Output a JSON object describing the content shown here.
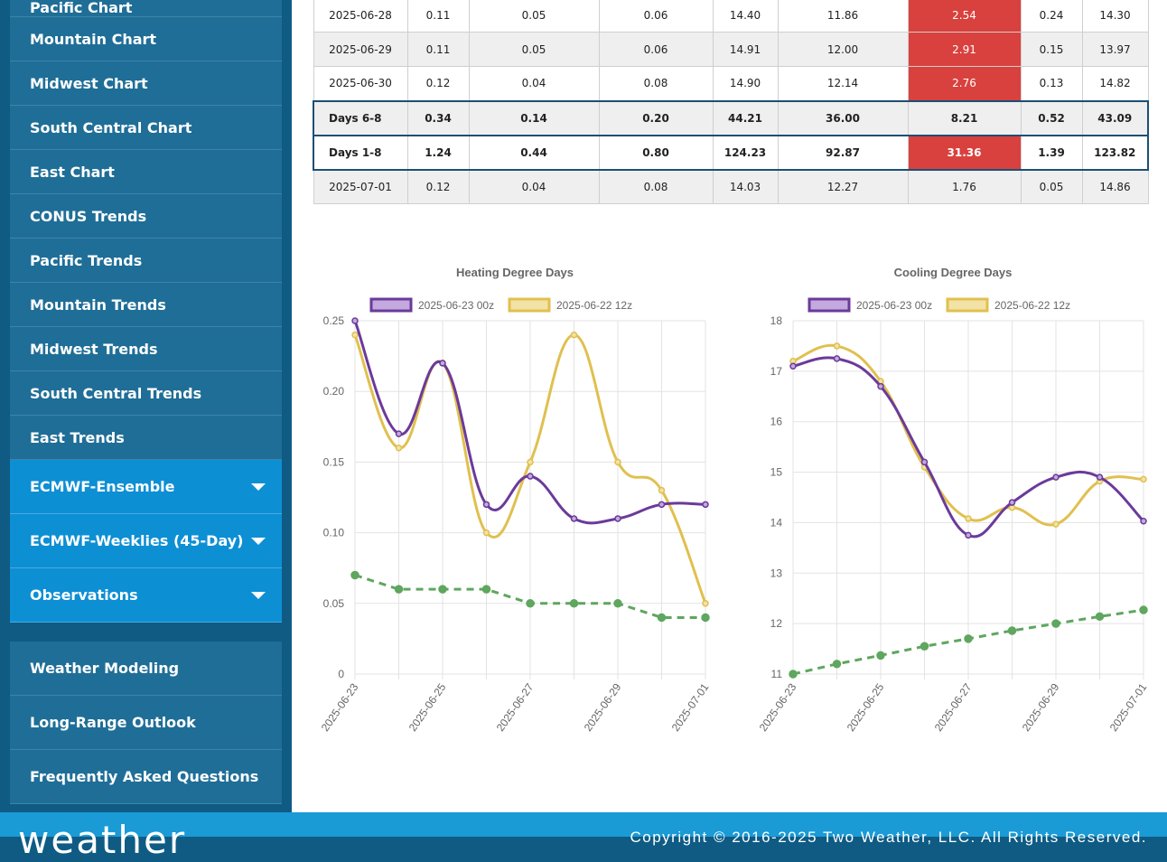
{
  "sidebar": {
    "items": [
      {
        "label": "Pacific Chart"
      },
      {
        "label": "Mountain Chart"
      },
      {
        "label": "Midwest Chart"
      },
      {
        "label": "South Central Chart"
      },
      {
        "label": "East Chart"
      },
      {
        "label": "CONUS Trends"
      },
      {
        "label": "Pacific Trends"
      },
      {
        "label": "Mountain Trends"
      },
      {
        "label": "Midwest Trends"
      },
      {
        "label": "South Central Trends"
      },
      {
        "label": "East Trends"
      }
    ],
    "expanders": [
      {
        "label": "ECMWF-Ensemble"
      },
      {
        "label": "ECMWF-Weeklies (45-Day)"
      },
      {
        "label": "Observations"
      }
    ],
    "links": [
      {
        "label": "Weather Modeling"
      },
      {
        "label": "Long-Range Outlook"
      },
      {
        "label": "Frequently Asked Questions"
      }
    ]
  },
  "table": {
    "rows": [
      {
        "c": [
          "2025-06-28",
          "0.11",
          "0.05",
          "0.06",
          "14.40",
          "11.86",
          "2.54",
          "0.24",
          "14.30"
        ],
        "red": true,
        "alt": false
      },
      {
        "c": [
          "2025-06-29",
          "0.11",
          "0.05",
          "0.06",
          "14.91",
          "12.00",
          "2.91",
          "0.15",
          "13.97"
        ],
        "red": true,
        "alt": true
      },
      {
        "c": [
          "2025-06-30",
          "0.12",
          "0.04",
          "0.08",
          "14.90",
          "12.14",
          "2.76",
          "0.13",
          "14.82"
        ],
        "red": true,
        "alt": false
      },
      {
        "c": [
          "Days 6-8",
          "0.34",
          "0.14",
          "0.20",
          "44.21",
          "36.00",
          "8.21",
          "0.52",
          "43.09"
        ],
        "red": false,
        "alt": true,
        "summary": true
      },
      {
        "c": [
          "Days 1-8",
          "1.24",
          "0.44",
          "0.80",
          "124.23",
          "92.87",
          "31.36",
          "1.39",
          "123.82"
        ],
        "red": true,
        "alt": false,
        "summary": true
      },
      {
        "c": [
          "2025-07-01",
          "0.12",
          "0.04",
          "0.08",
          "14.03",
          "12.27",
          "1.76",
          "0.05",
          "14.86"
        ],
        "red": false,
        "alt": true
      }
    ]
  },
  "colors": {
    "series1": "#6b3a9a",
    "series2": "#e0c04f",
    "series3": "#5fa65f",
    "red": "#d9413e"
  },
  "chart_data": [
    {
      "type": "line",
      "title": "Heating Degree Days",
      "x": [
        "2025-06-23",
        "2025-06-24",
        "2025-06-25",
        "2025-06-26",
        "2025-06-27",
        "2025-06-28",
        "2025-06-29",
        "2025-06-30",
        "2025-07-01"
      ],
      "xticks": [
        "2025-06-23",
        "2025-06-25",
        "2025-06-27",
        "2025-06-29",
        "2025-07-01"
      ],
      "yticks": [
        "0.25",
        "0.20",
        "0.15",
        "0.10",
        "0.05",
        "0"
      ],
      "ylim": [
        0,
        0.25
      ],
      "legend": "top",
      "series": [
        {
          "name": "2025-06-23 00z",
          "values": [
            0.25,
            0.17,
            0.22,
            0.12,
            0.14,
            0.11,
            0.11,
            0.12,
            0.12
          ]
        },
        {
          "name": "2025-06-22 12z",
          "values": [
            0.24,
            0.16,
            0.22,
            0.1,
            0.15,
            0.24,
            0.15,
            0.13,
            0.05
          ]
        },
        {
          "values": [
            0.07,
            0.06,
            0.06,
            0.06,
            0.05,
            0.05,
            0.05,
            0.04,
            0.04
          ]
        }
      ]
    },
    {
      "type": "line",
      "title": "Cooling Degree Days",
      "x": [
        "2025-06-23",
        "2025-06-24",
        "2025-06-25",
        "2025-06-26",
        "2025-06-27",
        "2025-06-28",
        "2025-06-29",
        "2025-06-30",
        "2025-07-01"
      ],
      "xticks": [
        "2025-06-23",
        "2025-06-25",
        "2025-06-27",
        "2025-06-29",
        "2025-07-01"
      ],
      "yticks": [
        "18",
        "17",
        "16",
        "15",
        "14",
        "13",
        "12",
        "11"
      ],
      "ylim": [
        11,
        18
      ],
      "legend": "top",
      "series": [
        {
          "name": "2025-06-23 00z",
          "values": [
            17.1,
            17.25,
            16.7,
            15.2,
            13.75,
            14.4,
            14.9,
            14.9,
            14.03
          ]
        },
        {
          "name": "2025-06-22 12z",
          "values": [
            17.2,
            17.5,
            16.8,
            15.1,
            14.08,
            14.3,
            13.97,
            14.82,
            14.86
          ]
        },
        {
          "values": [
            11.0,
            11.2,
            11.37,
            11.55,
            11.7,
            11.86,
            12.0,
            12.14,
            12.27
          ]
        }
      ]
    }
  ],
  "footer": {
    "logo": "weather",
    "copyright": "Copyright © 2016-2025 Two Weather, LLC. All Rights Reserved."
  }
}
